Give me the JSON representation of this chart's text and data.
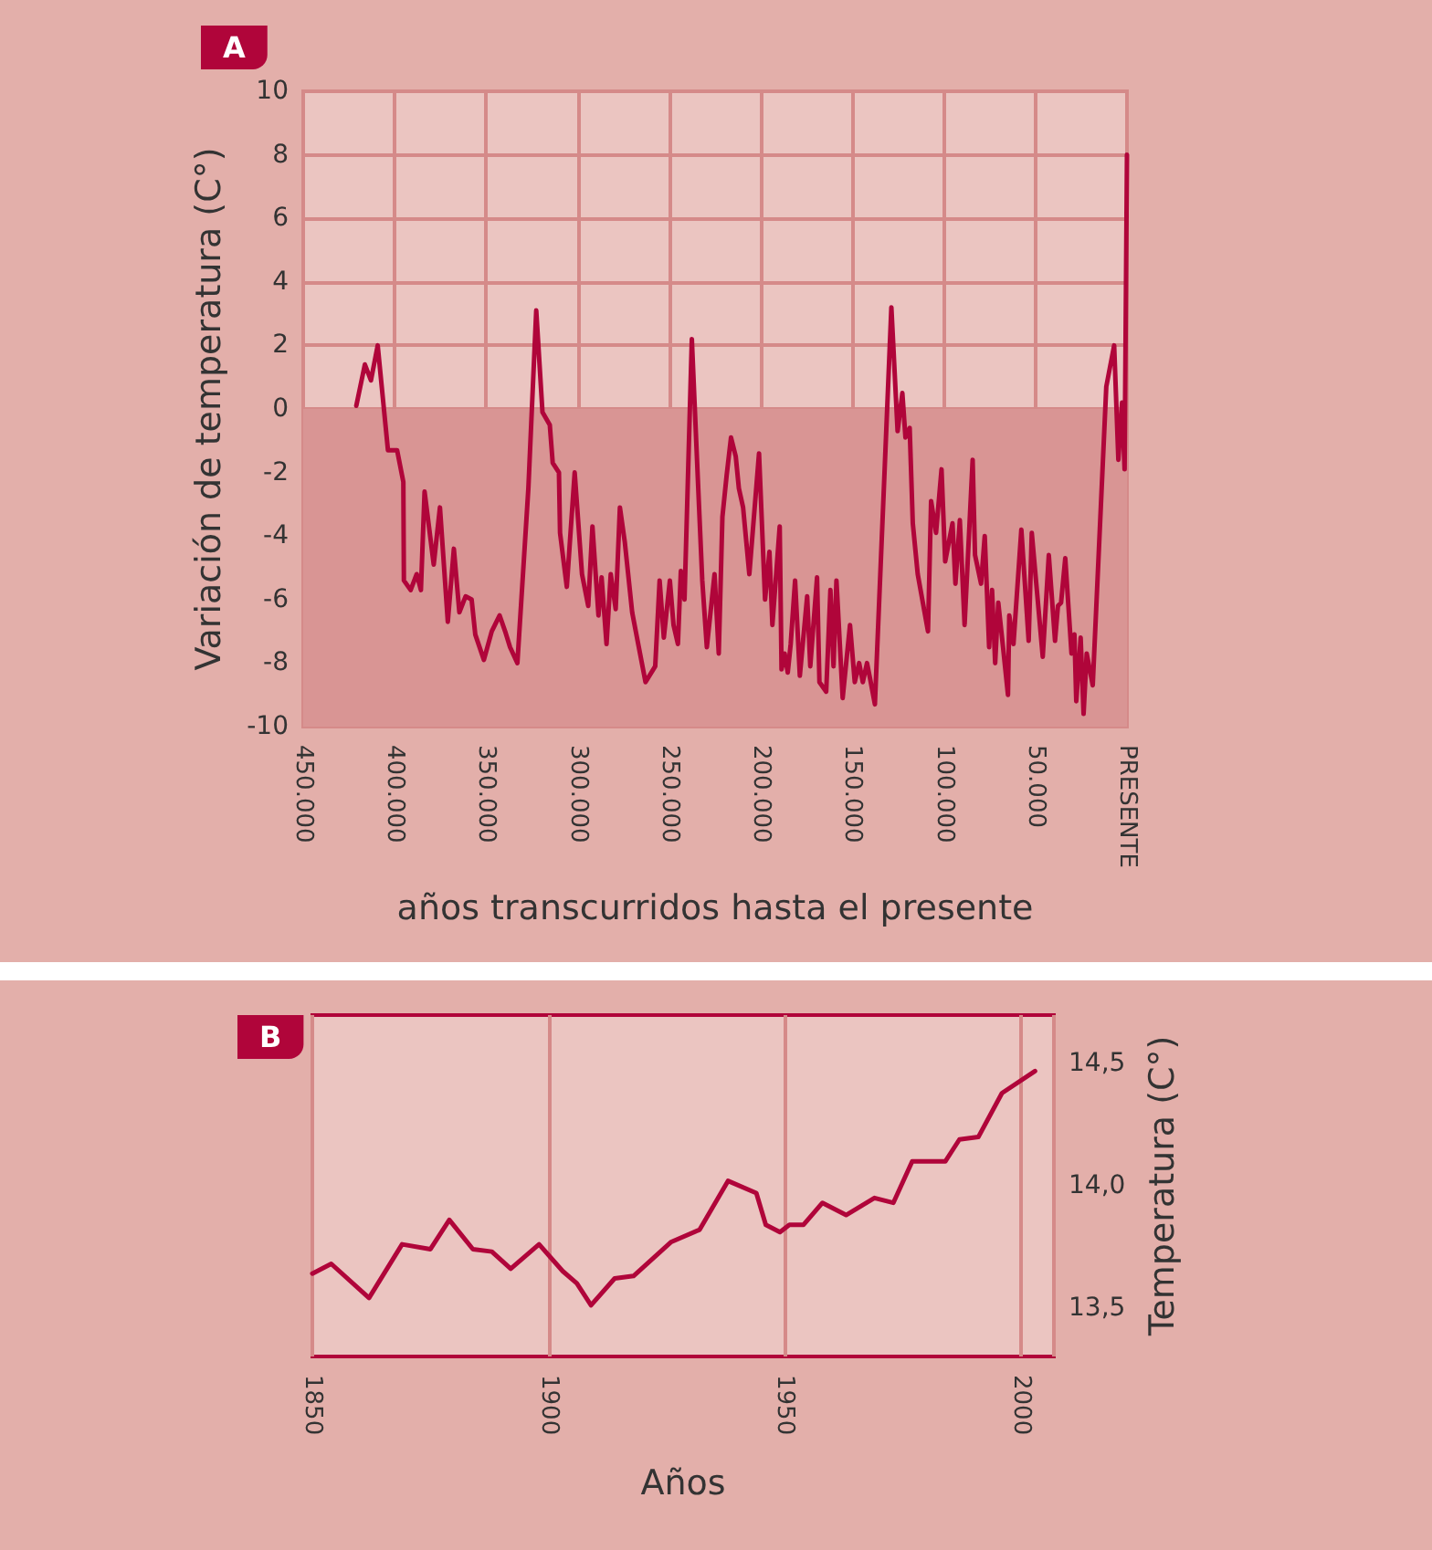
{
  "chart_data": [
    {
      "type": "line",
      "title": "A",
      "xlabel": "años transcurridos hasta el presente",
      "ylabel": "Variación de temperatura (C°)",
      "xlim": [
        450000,
        0
      ],
      "xticks": [
        {
          "value": 450000,
          "label": "450.000"
        },
        {
          "value": 400000,
          "label": "400.000"
        },
        {
          "value": 350000,
          "label": "350.000"
        },
        {
          "value": 300000,
          "label": "300.000"
        },
        {
          "value": 250000,
          "label": "250.000"
        },
        {
          "value": 200000,
          "label": "200.000"
        },
        {
          "value": 150000,
          "label": "150.000"
        },
        {
          "value": 100000,
          "label": "100.000"
        },
        {
          "value": 50000,
          "label": "50.000"
        },
        {
          "value": 0,
          "label": "PRESENTE"
        }
      ],
      "ylim": [
        -10,
        10
      ],
      "yticks": [
        -10,
        -8,
        -6,
        -4,
        -2,
        0,
        2,
        4,
        6,
        8,
        10
      ],
      "grid": true,
      "marker": "none",
      "line_style": "solid",
      "bands": [
        {
          "axis": "y",
          "from": -10,
          "to": 0,
          "color": "#d99594"
        }
      ],
      "series": [
        {
          "color": "#b0053a",
          "x": [
            421000,
            416300,
            413000,
            409300,
            403700,
            398700,
            395300,
            395000,
            391300,
            388000,
            385700,
            383700,
            378700,
            375300,
            371000,
            367700,
            364700,
            361300,
            358000,
            356000,
            351300,
            347000,
            342700,
            339700,
            337000,
            333000,
            327000,
            322700,
            319300,
            315300,
            313700,
            310300,
            309700,
            306000,
            301700,
            297700,
            294300,
            292000,
            288700,
            287000,
            284300,
            282000,
            279300,
            277000,
            274300,
            270300,
            267000,
            263000,
            257700,
            255300,
            253000,
            249700,
            247700,
            245300,
            243700,
            241700,
            237700,
            234500,
            232000,
            229500,
            225300,
            223000,
            221000,
            218700,
            216300,
            213700,
            212000,
            209700,
            206300,
            201000,
            197700,
            195300,
            193700,
            189700,
            188700,
            187000,
            185300,
            183700,
            181300,
            178700,
            174700,
            173000,
            169300,
            168000,
            164300,
            162000,
            160300,
            158700,
            155300,
            151300,
            148700,
            146300,
            144300,
            142000,
            140300,
            137700,
            128700,
            125300,
            122700,
            121000,
            118700,
            117000,
            114300,
            108700,
            107000,
            104300,
            101300,
            99300,
            95300,
            93700,
            91300,
            88700,
            84300,
            83000,
            79700,
            77700,
            75300,
            73700,
            72000,
            70300,
            67700,
            65000,
            64300,
            62000,
            57700,
            53700,
            52000,
            46000,
            42700,
            39300,
            37700,
            36000,
            33700,
            30300,
            28700,
            27700,
            25300,
            23700,
            22000,
            18700,
            11300,
            7000,
            4700,
            2700,
            1300,
            0
          ],
          "values": [
            0.1,
            1.4,
            0.9,
            2.0,
            -1.3,
            -1.3,
            -2.3,
            -5.4,
            -5.7,
            -5.2,
            -5.7,
            -2.6,
            -4.9,
            -3.1,
            -6.7,
            -4.4,
            -6.4,
            -5.9,
            -6.0,
            -7.1,
            -7.9,
            -7.0,
            -6.5,
            -7.0,
            -7.5,
            -8.0,
            -2.5,
            3.1,
            -0.1,
            -0.5,
            -1.7,
            -2.0,
            -3.9,
            -5.6,
            -2.0,
            -5.2,
            -6.2,
            -3.7,
            -6.5,
            -5.3,
            -7.4,
            -5.2,
            -6.3,
            -3.1,
            -4.2,
            -6.4,
            -7.4,
            -8.6,
            -8.1,
            -5.4,
            -7.2,
            -5.4,
            -6.8,
            -7.4,
            -5.1,
            -6.0,
            2.2,
            -2.1,
            -5.4,
            -7.5,
            -5.2,
            -7.7,
            -3.4,
            -2.1,
            -0.9,
            -1.5,
            -2.5,
            -3.1,
            -5.2,
            -1.4,
            -6.0,
            -4.5,
            -6.8,
            -3.7,
            -8.2,
            -7.7,
            -8.3,
            -7.4,
            -5.4,
            -8.4,
            -5.9,
            -8.1,
            -5.3,
            -8.6,
            -8.9,
            -5.7,
            -8.1,
            -5.4,
            -9.1,
            -6.8,
            -8.6,
            -8.0,
            -8.6,
            -8.0,
            -8.5,
            -9.3,
            3.2,
            -0.7,
            0.5,
            -0.9,
            -0.6,
            -3.6,
            -5.2,
            -7.0,
            -2.9,
            -3.9,
            -1.9,
            -4.8,
            -3.6,
            -5.5,
            -3.5,
            -6.8,
            -1.6,
            -4.6,
            -5.5,
            -4.0,
            -7.5,
            -5.7,
            -8.0,
            -6.1,
            -7.5,
            -9.0,
            -6.5,
            -7.4,
            -3.8,
            -7.3,
            -3.9,
            -7.8,
            -4.6,
            -7.3,
            -6.2,
            -6.1,
            -4.7,
            -7.7,
            -7.1,
            -9.2,
            -7.2,
            -9.6,
            -7.7,
            -8.7,
            0.7,
            2.0,
            -1.6,
            0.2,
            -1.9,
            8.0
          ]
        }
      ]
    },
    {
      "type": "line",
      "title": "B",
      "xlabel": "Años",
      "ylabel": "Temperatura (C°)",
      "xlim": [
        1850,
        2007
      ],
      "xticks": [
        1850,
        1900,
        1950,
        2000
      ],
      "ylim": [
        13.3,
        14.7
      ],
      "yticks": [
        {
          "value": 13.5,
          "label": "13,5"
        },
        {
          "value": 14.0,
          "label": "14,0"
        },
        {
          "value": 14.5,
          "label": "14,5"
        }
      ],
      "grid": "x",
      "marker": "none",
      "line_style": "solid",
      "series": [
        {
          "color": "#b0053a",
          "x": [
            1850,
            1854,
            1862,
            1869,
            1875,
            1879,
            1884,
            1888,
            1892,
            1898,
            1903,
            1906,
            1909,
            1914,
            1918,
            1926,
            1932,
            1938,
            1944,
            1946,
            1949,
            1951,
            1954,
            1958,
            1963,
            1969,
            1973,
            1977,
            1984,
            1987,
            1991,
            1996,
            2003
          ],
          "values": [
            13.64,
            13.68,
            13.54,
            13.76,
            13.74,
            13.86,
            13.74,
            13.73,
            13.66,
            13.76,
            13.65,
            13.6,
            13.51,
            13.62,
            13.63,
            13.77,
            13.82,
            14.02,
            13.97,
            13.84,
            13.81,
            13.84,
            13.84,
            13.93,
            13.88,
            13.95,
            13.93,
            14.1,
            14.1,
            14.19,
            14.2,
            14.38,
            14.47
          ]
        }
      ]
    }
  ]
}
